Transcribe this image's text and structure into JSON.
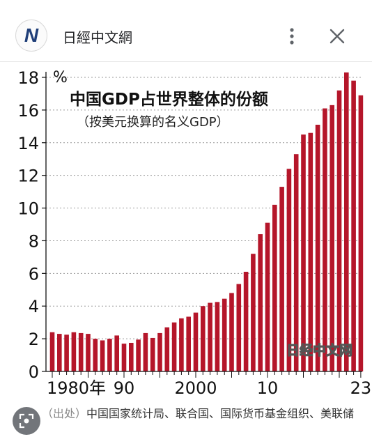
{
  "header": {
    "logo_text": "N",
    "title": "日經中文網",
    "more_icon": "more-vert-icon",
    "close_icon": "close-icon"
  },
  "chart_data": {
    "type": "bar",
    "title": "中国GDP占世界整体的份额",
    "subtitle": "（按美元换算的名义GDP）",
    "y_unit": "%",
    "ylim": [
      0,
      18.5
    ],
    "yticks": [
      0,
      2,
      4,
      6,
      8,
      10,
      12,
      14,
      16,
      18
    ],
    "grid": true,
    "bar_color": "#b5162a",
    "x_ticks": [
      {
        "label": "1980年",
        "year": 1980
      },
      {
        "label": "90",
        "year": 1990
      },
      {
        "label": "2000",
        "year": 2000
      },
      {
        "label": "10",
        "year": 2010
      },
      {
        "label": "23",
        "year": 2023
      }
    ],
    "years": [
      1980,
      1981,
      1982,
      1983,
      1984,
      1985,
      1986,
      1987,
      1988,
      1989,
      1990,
      1991,
      1992,
      1993,
      1994,
      1995,
      1996,
      1997,
      1998,
      1999,
      2000,
      2001,
      2002,
      2003,
      2004,
      2005,
      2006,
      2007,
      2008,
      2009,
      2010,
      2011,
      2012,
      2013,
      2014,
      2015,
      2016,
      2017,
      2018,
      2019,
      2020,
      2021,
      2022,
      2023
    ],
    "values": [
      2.4,
      2.3,
      2.25,
      2.4,
      2.35,
      2.3,
      2.0,
      1.9,
      2.0,
      2.2,
      1.7,
      1.75,
      1.95,
      2.35,
      2.05,
      2.35,
      2.7,
      3.0,
      3.25,
      3.35,
      3.6,
      4.0,
      4.2,
      4.25,
      4.45,
      4.8,
      5.35,
      6.1,
      7.2,
      8.4,
      9.1,
      10.2,
      11.3,
      12.4,
      13.3,
      14.5,
      14.6,
      15.1,
      16.1,
      16.3,
      17.2,
      18.3,
      17.8,
      16.9
    ],
    "watermark": "日经中文网"
  },
  "source": {
    "label": "（出处）",
    "text": "中国国家统计局、联合国、国际货币基金组织、美联储"
  },
  "lens_icon": "lens-search-icon"
}
